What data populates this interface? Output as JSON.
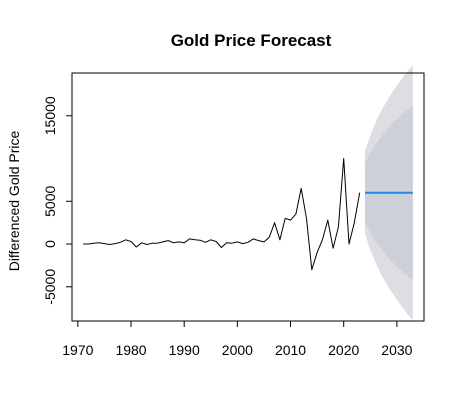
{
  "chart_data": {
    "type": "line",
    "title": "Gold Price Forecast",
    "xlabel": "",
    "ylabel": "Differenced Gold Price",
    "xlim": [
      1968.9,
      2035.1
    ],
    "ylim": [
      -9000,
      20000
    ],
    "x_ticks": [
      1970,
      1980,
      1990,
      2000,
      2010,
      2020,
      2030
    ],
    "y_ticks": [
      -5000,
      0,
      5000,
      15000
    ],
    "grid": false,
    "legend": "none",
    "series": [
      {
        "kind": "history",
        "color": "#000000",
        "x": [
          1971,
          1972,
          1973,
          1974,
          1975,
          1976,
          1977,
          1978,
          1979,
          1980,
          1981,
          1982,
          1983,
          1984,
          1985,
          1986,
          1987,
          1988,
          1989,
          1990,
          1991,
          1992,
          1993,
          1994,
          1995,
          1996,
          1997,
          1998,
          1999,
          2000,
          2001,
          2002,
          2003,
          2004,
          2005,
          2006,
          2007,
          2008,
          2009,
          2010,
          2011,
          2012,
          2013,
          2014,
          2015,
          2016,
          2017,
          2018,
          2019,
          2020,
          2021,
          2022,
          2023
        ],
        "values": [
          0,
          0,
          100,
          150,
          50,
          -50,
          50,
          200,
          500,
          300,
          -350,
          150,
          -50,
          100,
          100,
          250,
          400,
          150,
          250,
          150,
          600,
          500,
          450,
          200,
          500,
          300,
          -400,
          150,
          100,
          250,
          50,
          200,
          600,
          400,
          250,
          800,
          2500,
          500,
          3000,
          2800,
          3500,
          6500,
          3000,
          -3000,
          -1000,
          500,
          2800,
          -500,
          2000,
          10000,
          0,
          2500,
          6000
        ]
      },
      {
        "kind": "forecast",
        "color": "#2389e6",
        "x": [
          2024,
          2033
        ],
        "values": [
          6000,
          6000
        ]
      }
    ],
    "intervals": [
      {
        "level": "95%",
        "color": "#dddde3",
        "x": [
          2024,
          2025,
          2026,
          2027,
          2028,
          2029,
          2030,
          2031,
          2032,
          2033
        ],
        "lower": [
          1200,
          -700,
          -2200,
          -3500,
          -4600,
          -5600,
          -6500,
          -7400,
          -8200,
          -8900
        ],
        "upper": [
          10800,
          12700,
          14200,
          15500,
          16600,
          17600,
          18500,
          19400,
          20200,
          20900
        ]
      },
      {
        "level": "80%",
        "color": "#cdcfd9",
        "x": [
          2024,
          2025,
          2026,
          2027,
          2028,
          2029,
          2030,
          2031,
          2032,
          2033
        ],
        "lower": [
          2600,
          1300,
          300,
          -500,
          -1300,
          -2000,
          -2600,
          -3200,
          -3700,
          -4200
        ],
        "upper": [
          9400,
          10700,
          11700,
          12500,
          13300,
          14000,
          14600,
          15200,
          15700,
          16200
        ]
      }
    ]
  }
}
